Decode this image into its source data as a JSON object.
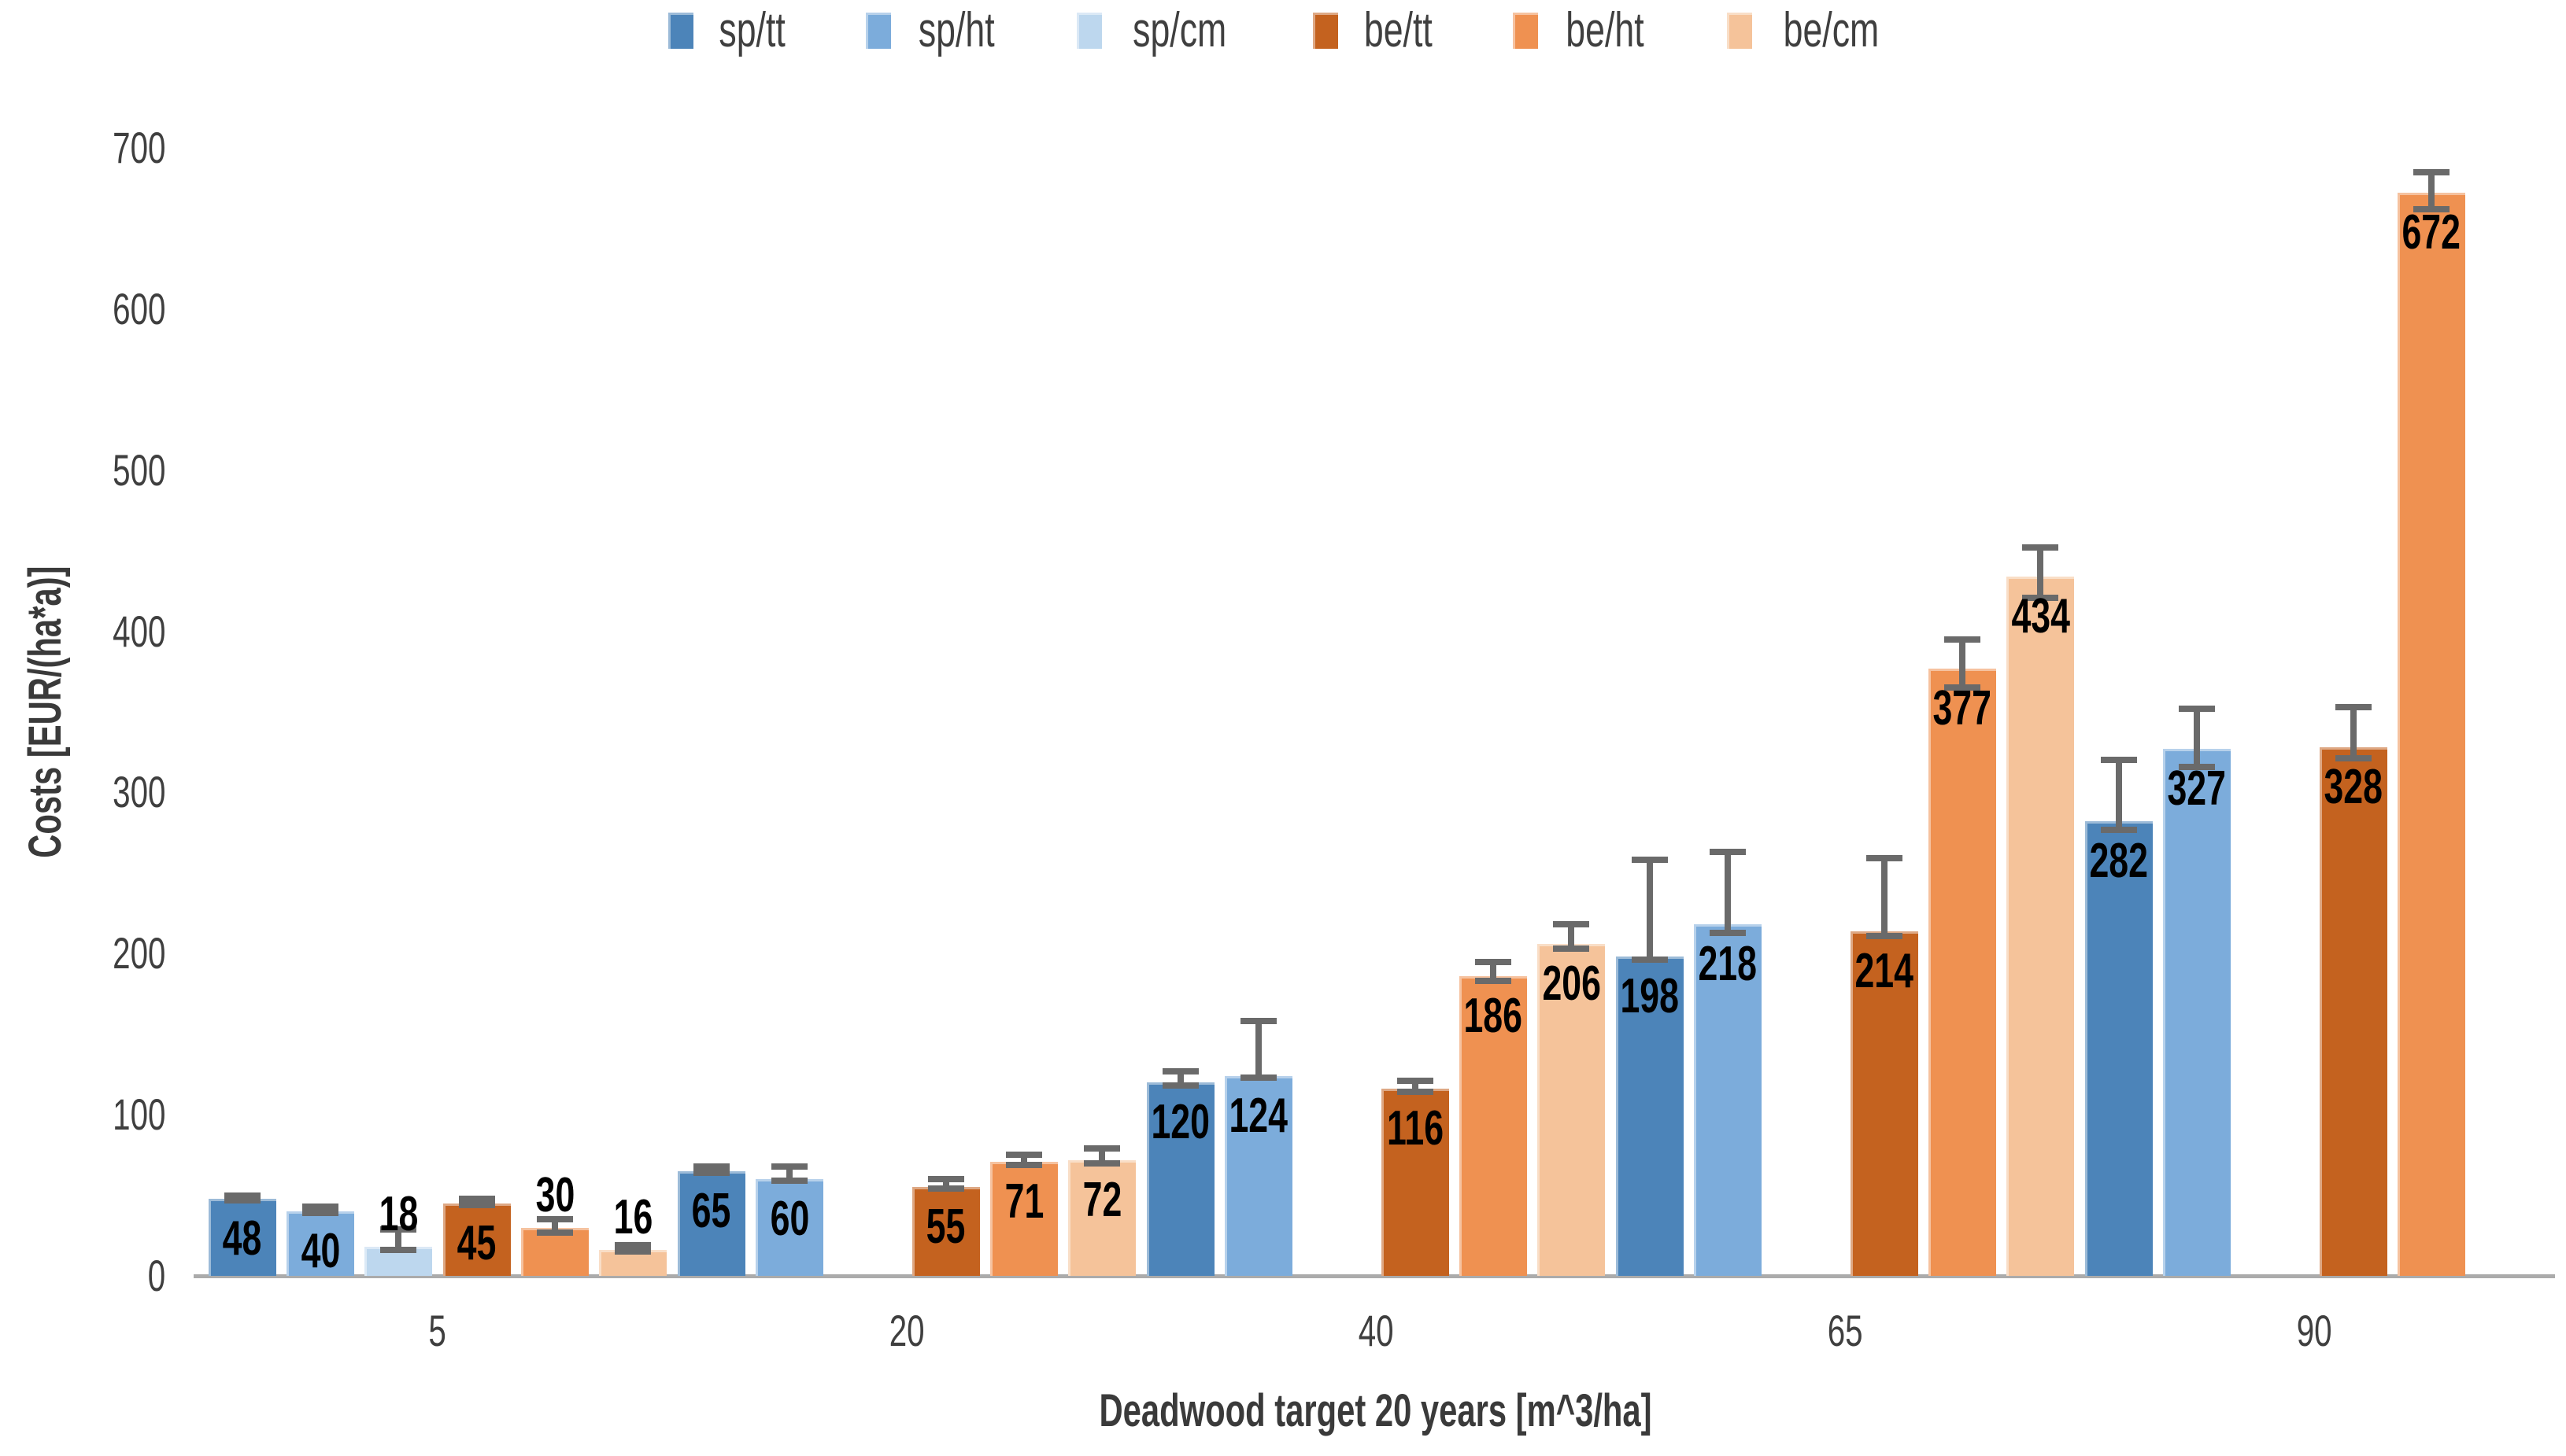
{
  "page": {
    "background": "#FFFFFF"
  },
  "legend": {
    "items": [
      {
        "label": "sp/tt",
        "color": "#4C84B9"
      },
      {
        "label": "sp/ht",
        "color": "#7CACDB"
      },
      {
        "label": "sp/cm",
        "color": "#BDD7EE"
      },
      {
        "label": "be/tt",
        "color": "#C4621F"
      },
      {
        "label": "be/ht",
        "color": "#EF9151"
      },
      {
        "label": "be/cm",
        "color": "#F5C39A"
      }
    ]
  },
  "chart_data": {
    "type": "bar",
    "title": "",
    "xlabel": "Deadwood target 20 years [m^3/ha]",
    "ylabel": "Costs [EUR/(ha*a)]",
    "ylim": [
      0,
      700
    ],
    "yticks": [
      0,
      100,
      200,
      300,
      400,
      500,
      600,
      700
    ],
    "categories": [
      "5",
      "20",
      "40",
      "65",
      "90"
    ],
    "grid": false,
    "legend_position": "top",
    "bar_value_labels": true,
    "error_bars": true,
    "series": [
      {
        "name": "sp/tt",
        "color": "#4C84B9",
        "values": [
          48,
          65,
          120,
          198,
          282
        ],
        "err_up": [
          2,
          3,
          7,
          60,
          38
        ],
        "err_down": [
          1,
          1,
          2,
          2,
          5
        ]
      },
      {
        "name": "sp/ht",
        "color": "#7CACDB",
        "values": [
          40,
          60,
          124,
          218,
          327
        ],
        "err_up": [
          3,
          8,
          34,
          45,
          25
        ],
        "err_down": [
          1,
          1,
          1,
          5,
          11
        ]
      },
      {
        "name": "sp/cm",
        "color": "#BDD7EE",
        "values": [
          18,
          null,
          null,
          null,
          null
        ],
        "err_up": [
          11,
          null,
          null,
          null,
          null
        ],
        "err_down": [
          2,
          null,
          null,
          null,
          null
        ]
      },
      {
        "name": "be/tt",
        "color": "#C4621F",
        "values": [
          45,
          55,
          116,
          214,
          328
        ],
        "err_up": [
          3,
          5,
          5,
          45,
          25
        ],
        "err_down": [
          1,
          1,
          2,
          3,
          7
        ]
      },
      {
        "name": "be/ht",
        "color": "#EF9151",
        "values": [
          30,
          71,
          186,
          377,
          672
        ],
        "err_up": [
          5,
          4,
          9,
          18,
          13
        ],
        "err_down": [
          3,
          2,
          3,
          12,
          10
        ]
      },
      {
        "name": "be/cm",
        "color": "#F5C39A",
        "values": [
          16,
          72,
          206,
          434,
          null
        ],
        "err_up": [
          3,
          7,
          12,
          18,
          null
        ],
        "err_down": [
          1,
          2,
          3,
          13,
          null
        ]
      }
    ],
    "colors": {
      "error_bar": "#6A6A6A",
      "axis_line": "#ABABAB",
      "tick_text": "#3F3F3F",
      "axis_title_text": "#3A3A3A",
      "data_label_text": "#000000",
      "legend_text": "#3F3F3F"
    }
  }
}
